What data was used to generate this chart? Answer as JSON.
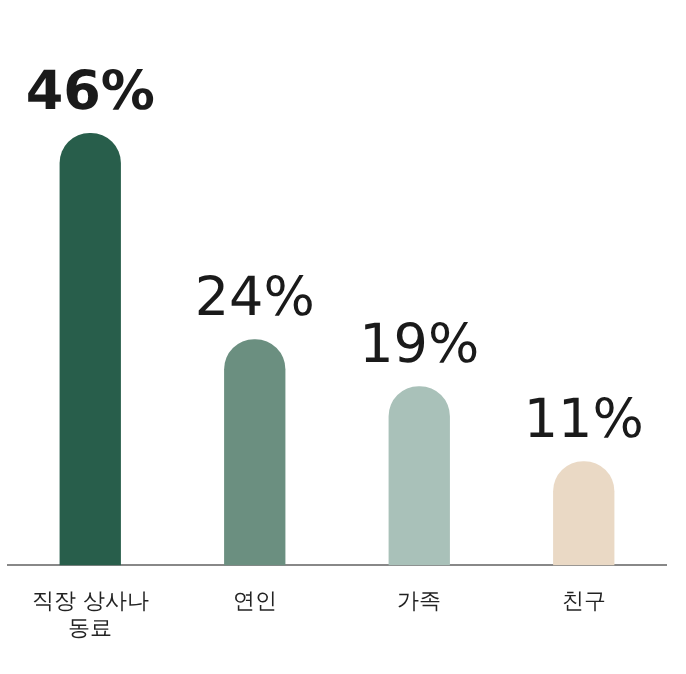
{
  "chart_data": {
    "type": "bar",
    "categories": [
      "직장 상사나 동료",
      "연인",
      "가족",
      "친구"
    ],
    "values": [
      46,
      24,
      19,
      11
    ],
    "colors": [
      "#285e4b",
      "#6b8f80",
      "#a9c1b9",
      "#ead9c5"
    ],
    "value_labels": [
      "46%",
      "24%",
      "19%",
      "11%"
    ],
    "grid": false,
    "legend": false
  }
}
